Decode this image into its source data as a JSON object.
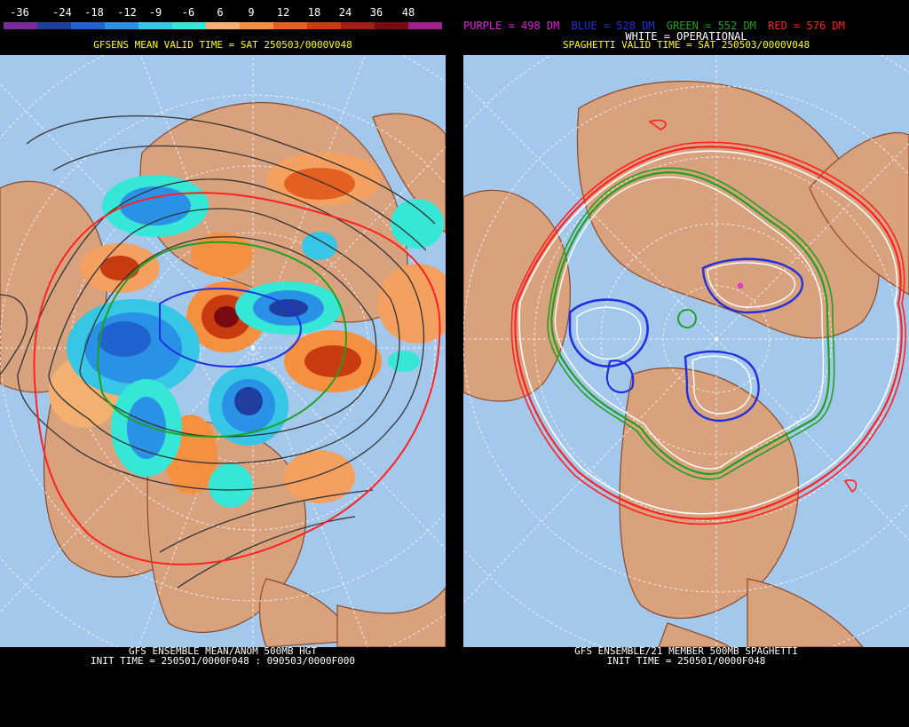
{
  "left": {
    "colorbar": {
      "labels": [
        "-36",
        "-24",
        "-18",
        "-12",
        "-9",
        "-6",
        "6",
        "9",
        "12",
        "18",
        "24",
        "36",
        "48"
      ],
      "colors": [
        "#7a2a9a",
        "#1f3fa0",
        "#1f62d0",
        "#2a92e6",
        "#36c6e6",
        "#36e6d6",
        "#f4b070",
        "#f49040",
        "#e46020",
        "#c83a10",
        "#a01e14",
        "#7a0a10",
        "#a0208c"
      ]
    },
    "subtitle": "GFSENS MEAN VALID TIME = SAT 250503/0000V048",
    "bottom_line1": "GFS ENSEMBLE MEAN/ANOM 500MB HGT",
    "bottom_line2": "INIT TIME = 250501/0000F048 : 090503/0000F000"
  },
  "right": {
    "legend": [
      {
        "text": "PURPLE = 498 DM",
        "color": "#e020e0"
      },
      {
        "text": "BLUE = 528 DM",
        "color": "#2030e0"
      },
      {
        "text": "GREEN = 552 DM",
        "color": "#20a020"
      },
      {
        "text": "RED = 576 DM",
        "color": "#ff2020"
      }
    ],
    "white_line": "WHITE = OPERATIONAL",
    "subtitle": "SPAGHETTI VALID TIME = SAT 250503/0000V048",
    "bottom_line1": "GFS ENSEMBLE/21 MEMBER 500MB SPAGHETTI",
    "bottom_line2": "INIT TIME = 250501/0000F048"
  },
  "colors": {
    "ocean": "#a4c8ec",
    "land": "#d8a27e",
    "coast": "#8a4a2a"
  }
}
